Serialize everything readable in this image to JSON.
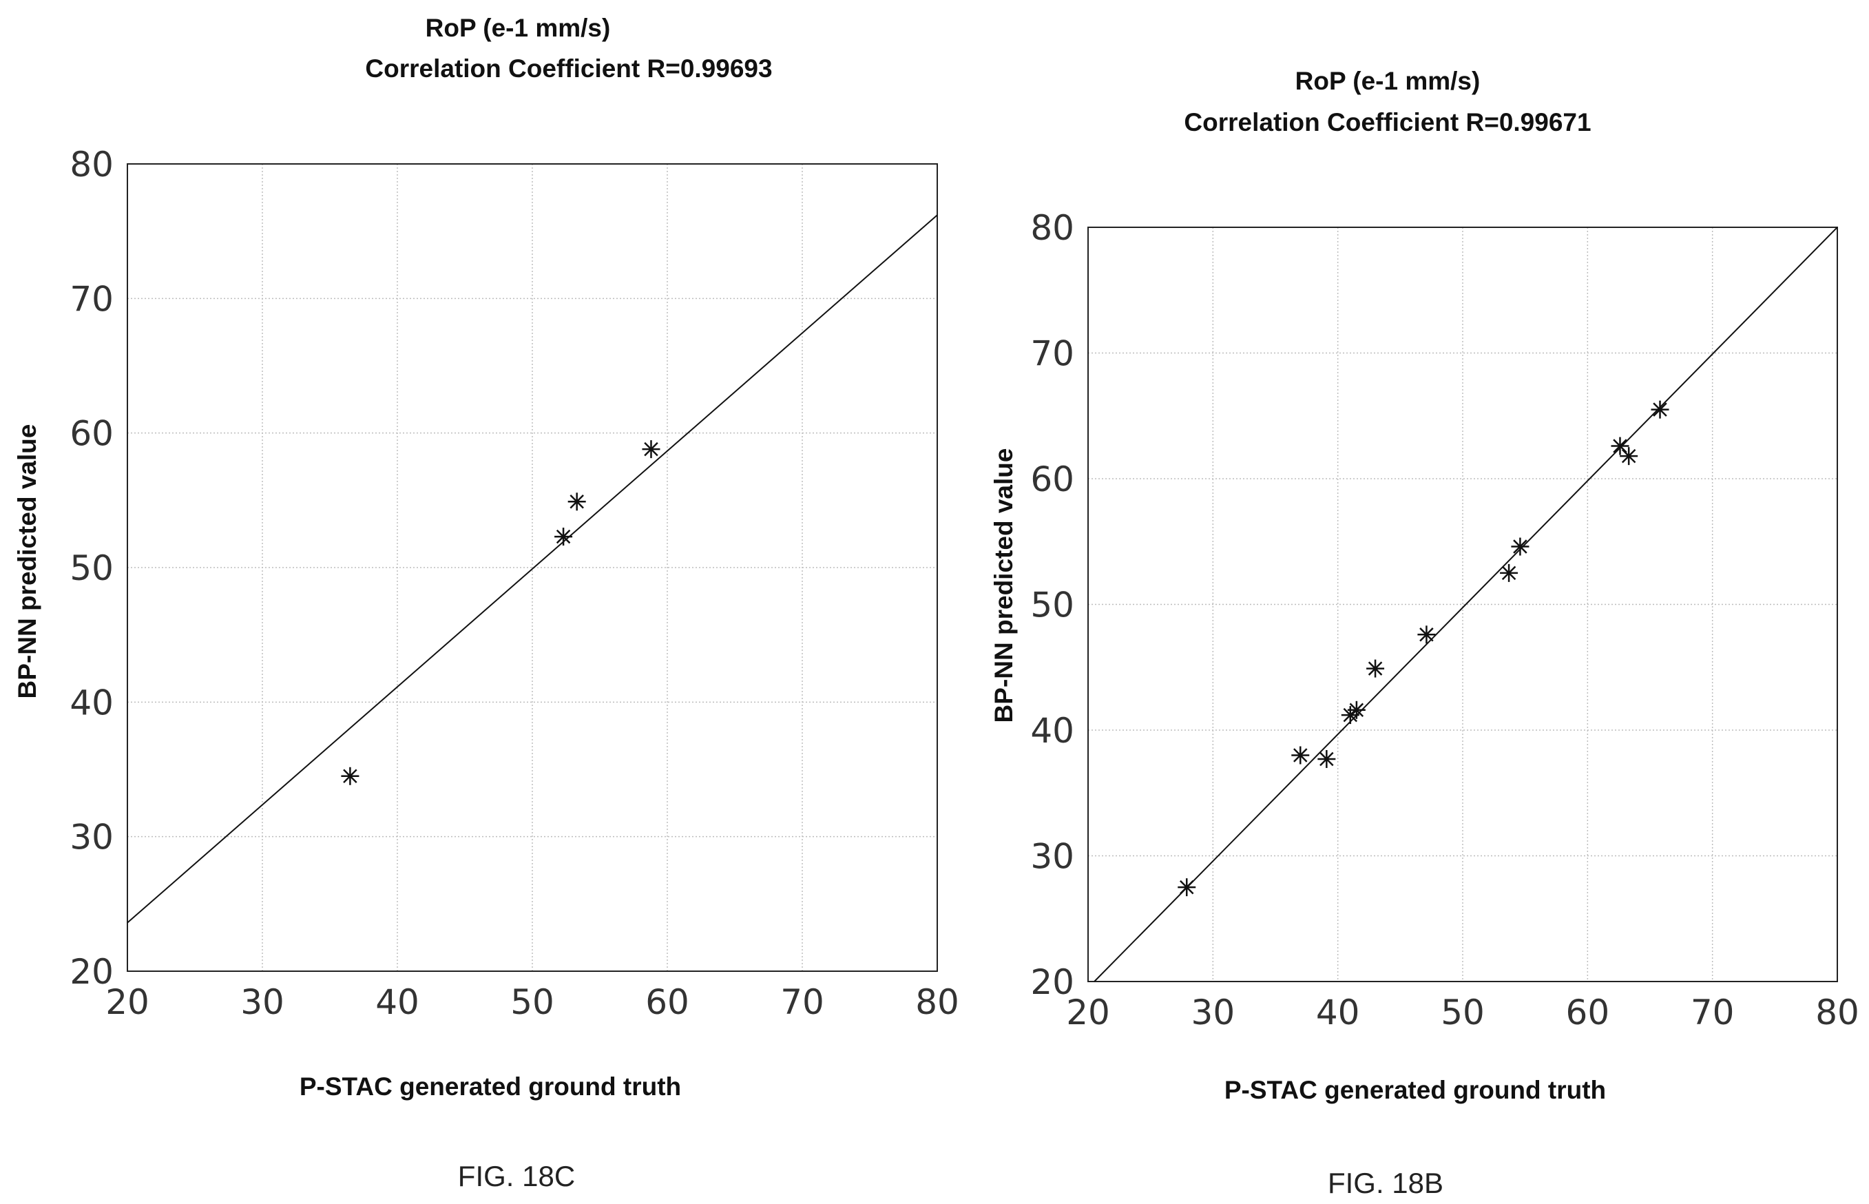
{
  "chart_data": [
    {
      "type": "scatter",
      "title": "RoP (e-1 mm/s)",
      "subtitle": "Correlation Coefficient R=0.99693",
      "xlabel": "P-STAC generated ground truth",
      "ylabel": "BP-NN predicted value",
      "caption": "FIG. 18C",
      "xlim": [
        20,
        80
      ],
      "ylim": [
        20,
        80
      ],
      "xticks": [
        "20",
        "30",
        "40",
        "50",
        "60",
        "70",
        "80"
      ],
      "yticks": [
        "20",
        "30",
        "40",
        "50",
        "60",
        "70",
        "80"
      ],
      "grid": true,
      "marker": "asterisk",
      "points": [
        {
          "x": 36.5,
          "y": 34.5
        },
        {
          "x": 52.3,
          "y": 52.3
        },
        {
          "x": 53.3,
          "y": 54.9
        },
        {
          "x": 58.8,
          "y": 58.8
        }
      ],
      "fit_line": {
        "x": [
          20,
          80
        ],
        "y": [
          23.6,
          76.2
        ]
      }
    },
    {
      "type": "scatter",
      "title": "RoP (e-1 mm/s)",
      "subtitle": "Correlation Coefficient R=0.99671",
      "xlabel": "P-STAC generated ground truth",
      "ylabel": "BP-NN predicted value",
      "caption": "FIG. 18B",
      "xlim": [
        20,
        80
      ],
      "ylim": [
        20,
        80
      ],
      "xticks": [
        "20",
        "30",
        "40",
        "50",
        "60",
        "70",
        "80"
      ],
      "yticks": [
        "20",
        "30",
        "40",
        "50",
        "60",
        "70",
        "80"
      ],
      "grid": true,
      "marker": "asterisk",
      "points": [
        {
          "x": 27.9,
          "y": 27.5
        },
        {
          "x": 37.0,
          "y": 38.0
        },
        {
          "x": 39.1,
          "y": 37.7
        },
        {
          "x": 41.0,
          "y": 41.2
        },
        {
          "x": 41.5,
          "y": 41.6
        },
        {
          "x": 43.0,
          "y": 44.9
        },
        {
          "x": 47.1,
          "y": 47.6
        },
        {
          "x": 53.7,
          "y": 52.5
        },
        {
          "x": 54.6,
          "y": 54.6
        },
        {
          "x": 62.6,
          "y": 62.6
        },
        {
          "x": 63.3,
          "y": 61.8
        },
        {
          "x": 65.8,
          "y": 65.5
        }
      ],
      "fit_line": {
        "x": [
          20.5,
          80
        ],
        "y": [
          20.0,
          80.0
        ]
      }
    }
  ]
}
